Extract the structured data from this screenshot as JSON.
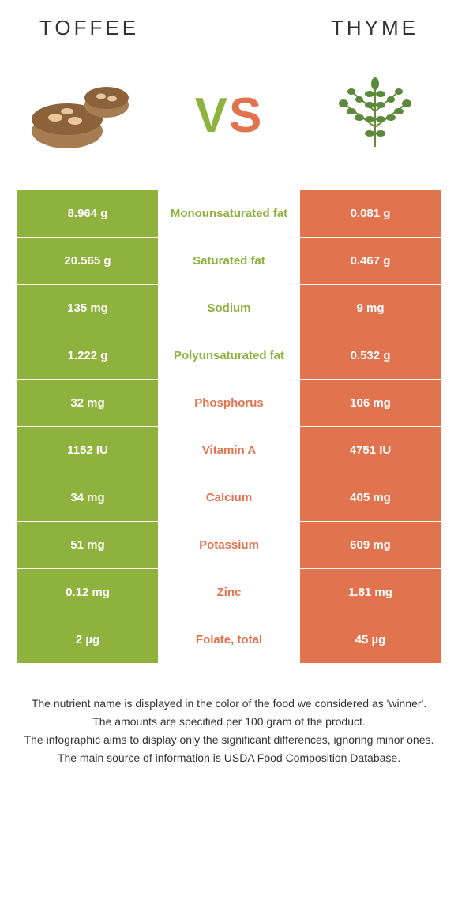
{
  "header": {
    "left_title": "Toffee",
    "right_title": "Thyme"
  },
  "vs": {
    "v": "V",
    "s": "S"
  },
  "colors": {
    "green": "#8fb23e",
    "orange": "#e2734f",
    "text": "#333333",
    "white": "#ffffff"
  },
  "table": {
    "rows": [
      {
        "left": "8.964 g",
        "label": "Monounsaturated fat",
        "right": "0.081 g",
        "winner": "left"
      },
      {
        "left": "20.565 g",
        "label": "Saturated fat",
        "right": "0.467 g",
        "winner": "left"
      },
      {
        "left": "135 mg",
        "label": "Sodium",
        "right": "9 mg",
        "winner": "left"
      },
      {
        "left": "1.222 g",
        "label": "Polyunsaturated fat",
        "right": "0.532 g",
        "winner": "left"
      },
      {
        "left": "32 mg",
        "label": "Phosphorus",
        "right": "106 mg",
        "winner": "right"
      },
      {
        "left": "1152 IU",
        "label": "Vitamin A",
        "right": "4751 IU",
        "winner": "right"
      },
      {
        "left": "34 mg",
        "label": "Calcium",
        "right": "405 mg",
        "winner": "right"
      },
      {
        "left": "51 mg",
        "label": "Potassium",
        "right": "609 mg",
        "winner": "right"
      },
      {
        "left": "0.12 mg",
        "label": "Zinc",
        "right": "1.81 mg",
        "winner": "right"
      },
      {
        "left": "2 µg",
        "label": "Folate, total",
        "right": "45 µg",
        "winner": "right"
      }
    ]
  },
  "footer": {
    "line1": "The nutrient name is displayed in the color of the food we considered as 'winner'.",
    "line2": "The amounts are specified per 100 gram of the product.",
    "line3": "The infographic aims to display only the significant differences, ignoring minor ones.",
    "line4": "The main source of information is USDA Food Composition Database."
  }
}
